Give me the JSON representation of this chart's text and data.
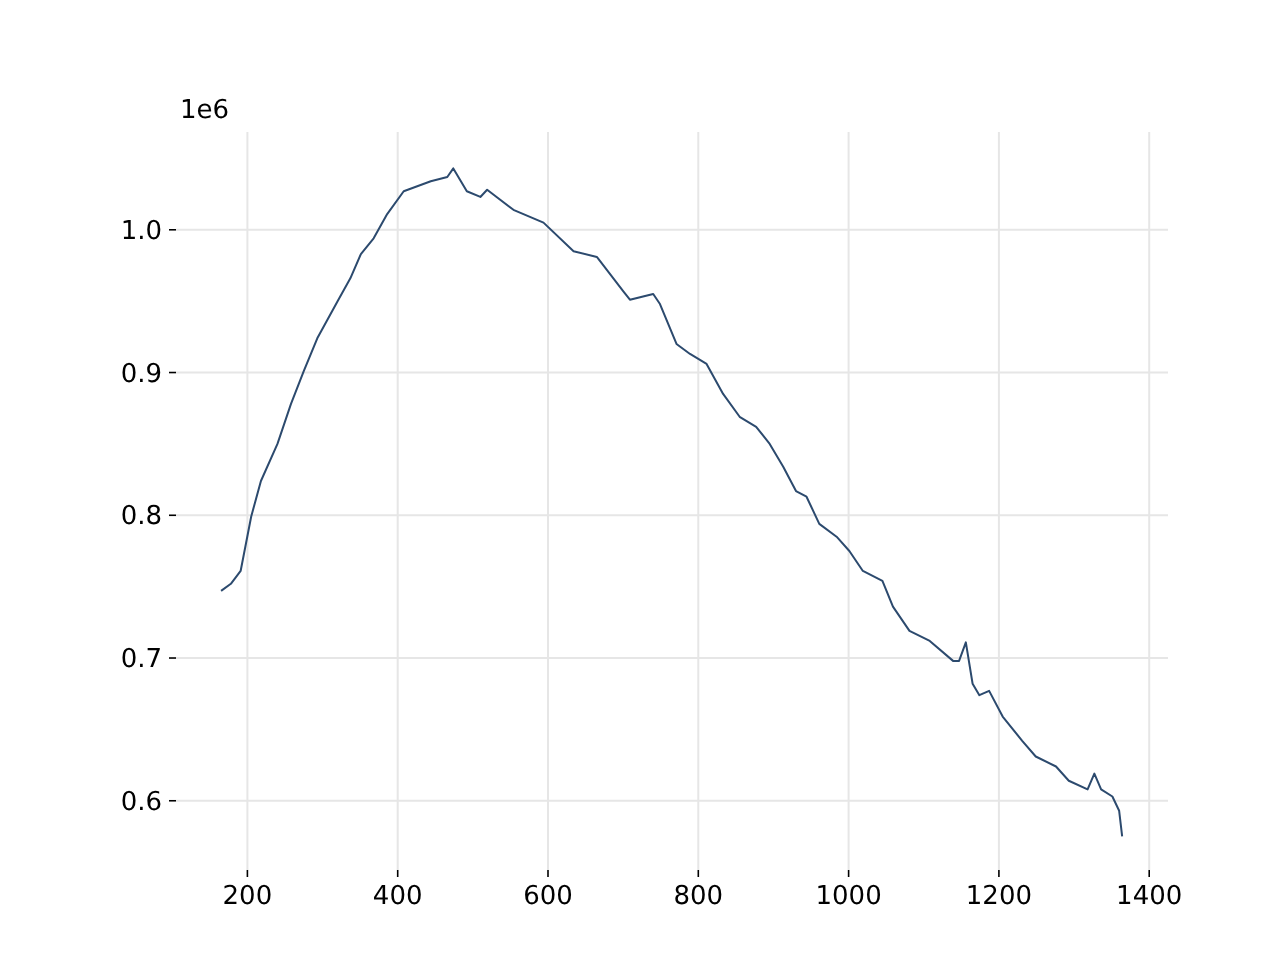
{
  "chart_data": {
    "type": "line",
    "annotations": [
      "1e6"
    ],
    "x": [
      165,
      178,
      191,
      205,
      218,
      240,
      258,
      275,
      293,
      320,
      337,
      351,
      368,
      386,
      408,
      444,
      466,
      474,
      492,
      510,
      519,
      554,
      594,
      634,
      665,
      700,
      709,
      740,
      749,
      771,
      789,
      811,
      833,
      855,
      877,
      895,
      913,
      930,
      944,
      961,
      984,
      1001,
      1019,
      1045,
      1059,
      1081,
      1108,
      1139,
      1147,
      1156,
      1165,
      1174,
      1187,
      1205,
      1231,
      1249,
      1276,
      1293,
      1318,
      1327,
      1336,
      1351,
      1360,
      1364
    ],
    "series": [
      {
        "color": "#2c4a6e",
        "values": [
          0.747,
          0.752,
          0.761,
          0.799,
          0.824,
          0.85,
          0.878,
          0.901,
          0.924,
          0.95,
          0.966,
          0.983,
          0.994,
          1.011,
          1.027,
          1.034,
          1.037,
          1.043,
          1.027,
          1.023,
          1.028,
          1.014,
          1.005,
          0.985,
          0.981,
          0.957,
          0.951,
          0.955,
          0.948,
          0.92,
          0.913,
          0.906,
          0.885,
          0.869,
          0.862,
          0.85,
          0.834,
          0.817,
          0.813,
          0.794,
          0.785,
          0.775,
          0.761,
          0.754,
          0.736,
          0.719,
          0.712,
          0.698,
          0.698,
          0.711,
          0.682,
          0.674,
          0.677,
          0.659,
          0.642,
          0.631,
          0.624,
          0.614,
          0.608,
          0.619,
          0.608,
          0.603,
          0.593,
          0.575
        ]
      }
    ],
    "xlim": [
      105,
      1425
    ],
    "ylim": [
      0.5515,
      1.0685
    ],
    "xticks": [
      200,
      400,
      600,
      800,
      1000,
      1200,
      1400
    ],
    "yticks": [
      0.6,
      0.7,
      0.8,
      0.9,
      {
        "value": 1,
        "label": "1.0"
      }
    ],
    "grid": true,
    "line_style": "solid"
  }
}
